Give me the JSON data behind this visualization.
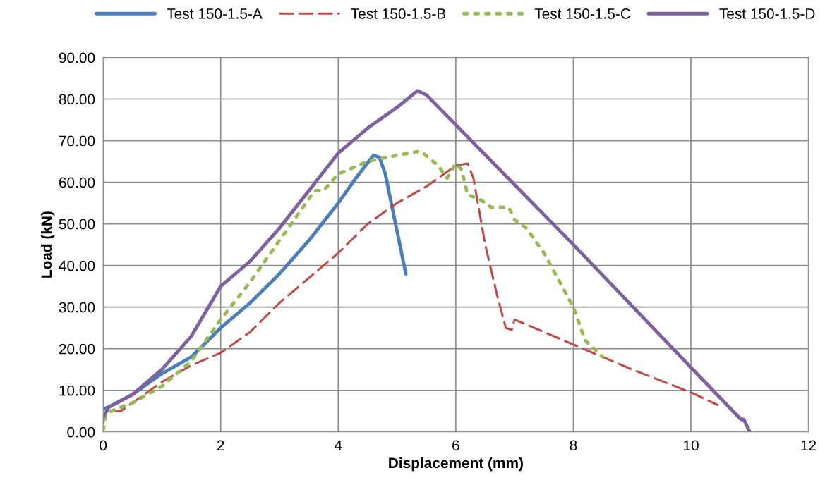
{
  "chart_data": {
    "type": "line",
    "xlabel": "Displacement (mm)",
    "ylabel": "Load (kN)",
    "xlim": [
      0,
      12
    ],
    "xticks": [
      0,
      2,
      4,
      6,
      8,
      10,
      12
    ],
    "ylim": [
      0,
      90
    ],
    "yticks": [
      {
        "value": 0,
        "label": "0.00"
      },
      {
        "value": 10,
        "label": "10.00"
      },
      {
        "value": 20,
        "label": "20.00"
      },
      {
        "value": 30,
        "label": "30.00"
      },
      {
        "value": 40,
        "label": "40.00"
      },
      {
        "value": 50,
        "label": "50.00"
      },
      {
        "value": 60,
        "label": "60.00"
      },
      {
        "value": 70,
        "label": "70.00"
      },
      {
        "value": 80,
        "label": "80.00"
      },
      {
        "value": 90,
        "label": "90.00"
      }
    ],
    "grid": true,
    "legend": "top",
    "marker": "none",
    "series": [
      {
        "name": "Test 150-1.5-A",
        "color": "#4a7ebb",
        "line_style": "solid",
        "x": [
          0,
          0.1,
          0.5,
          1,
          1.5,
          2,
          2.5,
          3,
          3.5,
          4,
          4.3,
          4.6,
          4.7,
          4.8,
          5.15
        ],
        "values": [
          5.5,
          6,
          9,
          14,
          18,
          25,
          31,
          38,
          46,
          55,
          61,
          66.5,
          66,
          62,
          38
        ]
      },
      {
        "name": "Test 150-1.5-B",
        "color": "#be4b48",
        "line_style": "dashed",
        "x": [
          0,
          0.05,
          0.3,
          1,
          1.5,
          2,
          2.5,
          3,
          3.5,
          4,
          4.5,
          5,
          5.5,
          6,
          6.2,
          6.3,
          6.5,
          6.7,
          6.85,
          6.95,
          7,
          8,
          9,
          10,
          10.45
        ],
        "values": [
          2,
          5,
          5,
          12,
          16,
          19,
          24,
          31,
          37,
          43,
          50,
          55,
          59,
          64,
          64.5,
          61,
          45,
          33,
          25,
          24.5,
          27,
          21,
          15,
          9.5,
          6.5
        ]
      },
      {
        "name": "Test 150-1.5-C",
        "color": "#98b954",
        "line_style": "dotted",
        "x": [
          0,
          0.05,
          0.5,
          1,
          1.5,
          2,
          2.5,
          3,
          3.5,
          3.6,
          3.75,
          4,
          4.5,
          5,
          5.4,
          5.7,
          5.85,
          6,
          6.1,
          6.2,
          6.4,
          6.6,
          6.9,
          7,
          7.2,
          7.5,
          8,
          8.2,
          8.5
        ],
        "values": [
          0.5,
          4.5,
          7,
          11,
          17,
          27,
          36,
          46,
          56,
          58,
          58,
          62,
          65,
          66.5,
          67.5,
          64,
          61,
          64.5,
          63,
          57,
          56,
          54,
          54,
          51,
          49,
          43,
          30,
          22,
          18
        ]
      },
      {
        "name": "Test 150-1.5-D",
        "color": "#7d60a0",
        "line_style": "solid",
        "x": [
          0,
          0.1,
          0.5,
          1,
          1.5,
          2,
          2.5,
          3,
          3.5,
          4,
          4.5,
          5,
          5.35,
          5.5,
          8,
          10,
          10.85,
          10.9,
          11
        ],
        "values": [
          3.5,
          6,
          9,
          15,
          23,
          35,
          41,
          49,
          58,
          67,
          73,
          78,
          82,
          81,
          45,
          15.5,
          3,
          3,
          0
        ]
      }
    ]
  }
}
